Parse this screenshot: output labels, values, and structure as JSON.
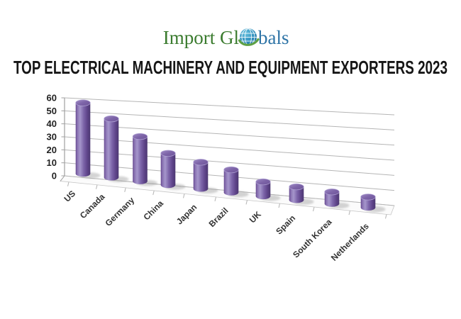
{
  "logo": {
    "text_left": "Import Gl",
    "text_right": "bals",
    "color_green": "#3a7b2e",
    "color_blue": "#2e74a6",
    "globe_fill": "#2f8fbe",
    "globe_swoosh": "#5ea044"
  },
  "title": {
    "text": "TOP ELECTRICAL MACHINERY AND EQUIPMENT EXPORTERS 2023",
    "color": "#161616"
  },
  "chart_data": {
    "type": "bar",
    "style": "3d-cylinder",
    "title": "",
    "xlabel": "",
    "ylabel": "",
    "categories": [
      "US",
      "Canada",
      "Germany",
      "China",
      "Japan",
      "Brazil",
      "UK",
      "Spain",
      "South Korea",
      "Netherlands"
    ],
    "values": [
      54,
      44,
      33,
      23,
      19,
      16,
      10,
      9,
      8,
      7
    ],
    "ylim": [
      0,
      60
    ],
    "yticks": [
      0,
      10,
      20,
      30,
      40,
      50,
      60
    ],
    "grid": true,
    "legend": "none",
    "bar_color": "#7c64a9",
    "bar_color_light": "#a596cb",
    "bar_color_dark": "#4d3872",
    "gridline_color": "#b5b5b5",
    "axis_color": "#a0a0a0",
    "tick_label_color": "#222222",
    "category_label_color": "#333333"
  }
}
